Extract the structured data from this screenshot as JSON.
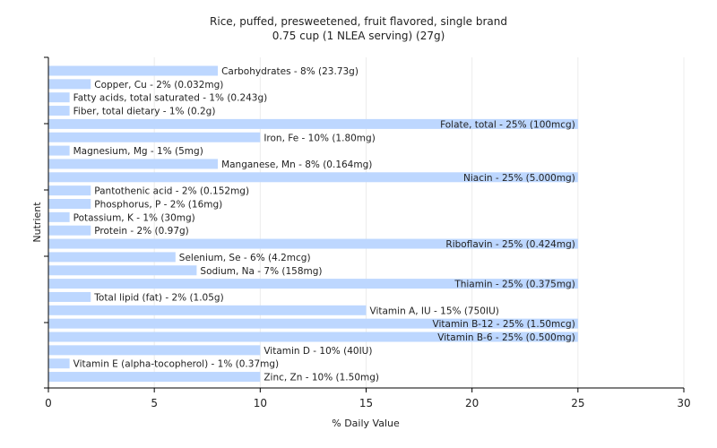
{
  "chart_data": {
    "type": "bar",
    "orientation": "horizontal",
    "title": "Rice, puffed, presweetened, fruit flavored, single brand",
    "subtitle": "0.75 cup (1 NLEA serving) (27g)",
    "xlabel": "% Daily Value",
    "ylabel": "Nutrient",
    "xlim": [
      0,
      30
    ],
    "xticks": [
      "0",
      "5",
      "10",
      "15",
      "20",
      "25",
      "30"
    ],
    "grid": true,
    "bar_color": "#bdd7ff",
    "categories": [
      "Carbohydrates",
      "Copper, Cu",
      "Fatty acids, total saturated",
      "Fiber, total dietary",
      "Folate, total",
      "Iron, Fe",
      "Magnesium, Mg",
      "Manganese, Mn",
      "Niacin",
      "Pantothenic acid",
      "Phosphorus, P",
      "Potassium, K",
      "Protein",
      "Riboflavin",
      "Selenium, Se",
      "Sodium, Na",
      "Thiamin",
      "Total lipid (fat)",
      "Vitamin A, IU",
      "Vitamin B-12",
      "Vitamin B-6",
      "Vitamin D",
      "Vitamin E (alpha-tocopherol)",
      "Zinc, Zn"
    ],
    "values": [
      8,
      2,
      1,
      1,
      25,
      10,
      1,
      8,
      25,
      2,
      2,
      1,
      2,
      25,
      6,
      7,
      25,
      2,
      15,
      25,
      25,
      10,
      1,
      10
    ],
    "labels": [
      "Carbohydrates - 8% (23.73g)",
      "Copper, Cu - 2% (0.032mg)",
      "Fatty acids, total saturated - 1% (0.243g)",
      "Fiber, total dietary - 1% (0.2g)",
      "Folate, total - 25% (100mcg)",
      "Iron, Fe - 10% (1.80mg)",
      "Magnesium, Mg - 1% (5mg)",
      "Manganese, Mn - 8% (0.164mg)",
      "Niacin - 25% (5.000mg)",
      "Pantothenic acid - 2% (0.152mg)",
      "Phosphorus, P - 2% (16mg)",
      "Potassium, K - 1% (30mg)",
      "Protein - 2% (0.97g)",
      "Riboflavin - 25% (0.424mg)",
      "Selenium, Se - 6% (4.2mcg)",
      "Sodium, Na - 7% (158mg)",
      "Thiamin - 25% (0.375mg)",
      "Total lipid (fat) - 2% (1.05g)",
      "Vitamin A, IU - 15% (750IU)",
      "Vitamin B-12 - 25% (1.50mcg)",
      "Vitamin B-6 - 25% (0.500mg)",
      "Vitamin D - 10% (40IU)",
      "Vitamin E (alpha-tocopherol) - 1% (0.37mg)",
      "Zinc, Zn - 10% (1.50mg)"
    ]
  }
}
